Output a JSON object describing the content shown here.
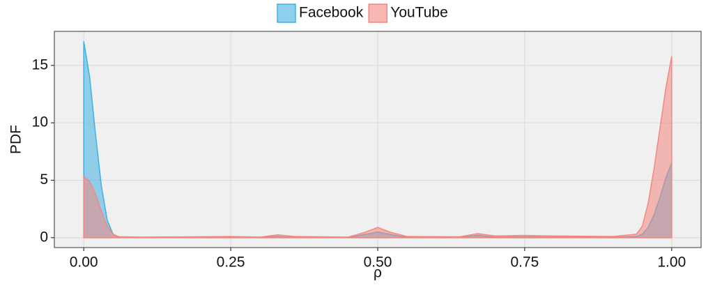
{
  "chart_data": {
    "type": "area",
    "x_label": "ρ",
    "y_label": "PDF",
    "x": [
      0,
      0.01,
      0.02,
      0.03,
      0.04,
      0.05,
      0.06,
      0.1,
      0.25,
      0.3,
      0.33,
      0.36,
      0.45,
      0.48,
      0.5,
      0.52,
      0.55,
      0.64,
      0.67,
      0.7,
      0.75,
      0.8,
      0.9,
      0.94,
      0.95,
      0.96,
      0.97,
      0.98,
      0.99,
      1
    ],
    "series": [
      {
        "name": "Facebook",
        "color": "#3fb0e3",
        "values": [
          17.1,
          14,
          9,
          4.5,
          1.5,
          0.3,
          0.05,
          0.02,
          0.03,
          0.03,
          0.1,
          0.03,
          0.02,
          0.3,
          0.5,
          0.3,
          0.03,
          0.05,
          0.2,
          0.05,
          0.08,
          0.05,
          0.03,
          0.1,
          0.3,
          0.9,
          2,
          3.5,
          5.2,
          6.5
        ]
      },
      {
        "name": "YouTube",
        "color": "#f4877f",
        "values": [
          5.3,
          4.9,
          3.8,
          2.3,
          1,
          0.3,
          0.08,
          0.05,
          0.1,
          0.05,
          0.25,
          0.1,
          0.05,
          0.5,
          0.9,
          0.5,
          0.1,
          0.08,
          0.35,
          0.15,
          0.2,
          0.15,
          0.1,
          0.3,
          1,
          3,
          6,
          9.5,
          13,
          15.8
        ]
      }
    ],
    "xlim": [
      -0.05,
      1.05
    ],
    "ylim": [
      -0.86,
      17.96
    ],
    "xticks": [
      {
        "value": 0,
        "label": "0.00"
      },
      {
        "value": 0.25,
        "label": "0.25"
      },
      {
        "value": 0.5,
        "label": "0.50"
      },
      {
        "value": 0.75,
        "label": "0.75"
      },
      {
        "value": 1,
        "label": "1.00"
      }
    ],
    "yticks": [
      0,
      5,
      10,
      15
    ],
    "grid": true,
    "legend": "top"
  }
}
